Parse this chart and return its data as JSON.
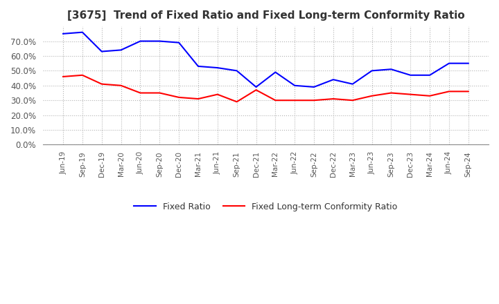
{
  "title": "[3675]  Trend of Fixed Ratio and Fixed Long-term Conformity Ratio",
  "title_fontsize": 11,
  "fixed_ratio": [
    0.75,
    0.76,
    0.63,
    0.64,
    0.7,
    0.7,
    0.69,
    0.53,
    0.52,
    0.5,
    0.39,
    0.49,
    0.4,
    0.39,
    0.44,
    0.41,
    0.5,
    0.51,
    0.47,
    0.47,
    0.55,
    0.55
  ],
  "fixed_lt_ratio": [
    0.46,
    0.47,
    0.41,
    0.4,
    0.35,
    0.35,
    0.32,
    0.31,
    0.34,
    0.29,
    0.37,
    0.3,
    0.3,
    0.3,
    0.31,
    0.3,
    0.33,
    0.35,
    0.34,
    0.33,
    0.36,
    0.36
  ],
  "x_labels": [
    "Jun-19",
    "Sep-19",
    "Dec-19",
    "Mar-20",
    "Jun-20",
    "Sep-20",
    "Dec-20",
    "Mar-21",
    "Jun-21",
    "Sep-21",
    "Dec-21",
    "Mar-22",
    "Jun-22",
    "Sep-22",
    "Dec-22",
    "Mar-23",
    "Jun-23",
    "Sep-23",
    "Dec-23",
    "Mar-24",
    "Jun-24",
    "Sep-24"
  ],
  "ylim": [
    0.0,
    0.8
  ],
  "yticks": [
    0.0,
    0.1,
    0.2,
    0.3,
    0.4,
    0.5,
    0.6,
    0.7
  ],
  "line_color_fixed": "#0000ff",
  "line_color_lt": "#ff0000",
  "legend_fixed": "Fixed Ratio",
  "legend_lt": "Fixed Long-term Conformity Ratio",
  "bg_color": "#ffffff",
  "grid_color": "#aaaaaa"
}
